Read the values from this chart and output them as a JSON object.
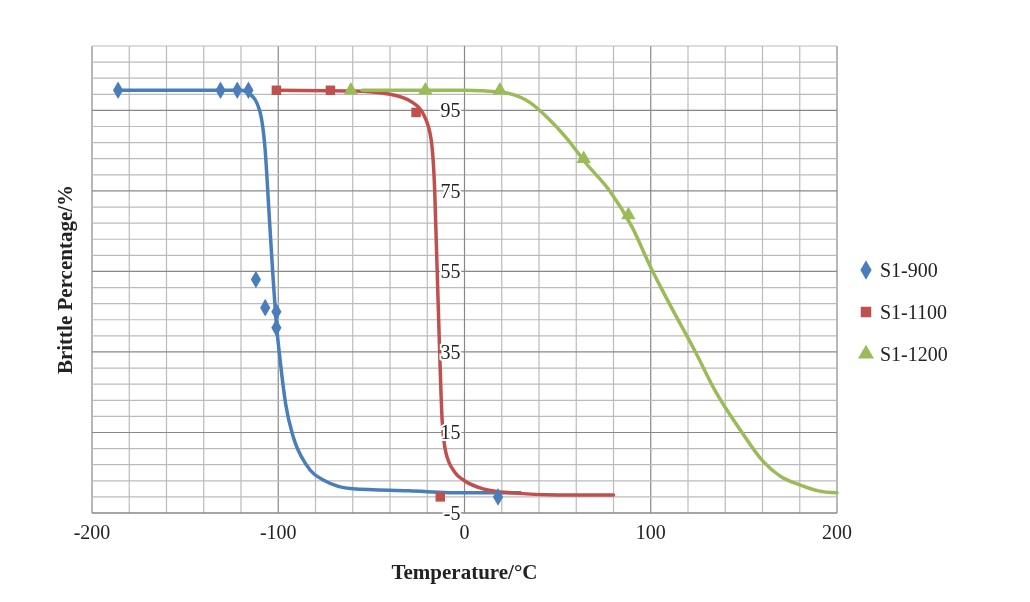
{
  "chart_data": {
    "type": "scatter",
    "xlabel": "Temperature/°C",
    "ylabel": "Brittle Percentage/%",
    "xlim": [
      -200,
      200
    ],
    "ylim": [
      -5,
      111
    ],
    "xticks": [
      -200,
      {
        "value": -180,
        "label": null
      },
      {
        "value": -160,
        "label": null
      },
      {
        "value": -140,
        "label": null
      },
      {
        "value": -120,
        "label": null
      },
      -100,
      {
        "value": -80,
        "label": null
      },
      {
        "value": -60,
        "label": null
      },
      {
        "value": -40,
        "label": null
      },
      {
        "value": -20,
        "label": null
      },
      0,
      {
        "value": 20,
        "label": null
      },
      {
        "value": 40,
        "label": null
      },
      {
        "value": 60,
        "label": null
      },
      {
        "value": 80,
        "label": null
      },
      100,
      {
        "value": 120,
        "label": null
      },
      {
        "value": 140,
        "label": null
      },
      {
        "value": 160,
        "label": null
      },
      {
        "value": 180,
        "label": null
      },
      200
    ],
    "yticks": [
      -5,
      {
        "value": -1,
        "label": null
      },
      {
        "value": 3,
        "label": null
      },
      {
        "value": 7,
        "label": null
      },
      {
        "value": 11,
        "label": null
      },
      15,
      {
        "value": 19,
        "label": null
      },
      {
        "value": 23,
        "label": null
      },
      {
        "value": 27,
        "label": null
      },
      {
        "value": 31,
        "label": null
      },
      35,
      {
        "value": 39,
        "label": null
      },
      {
        "value": 43,
        "label": null
      },
      {
        "value": 47,
        "label": null
      },
      {
        "value": 51,
        "label": null
      },
      55,
      {
        "value": 59,
        "label": null
      },
      {
        "value": 63,
        "label": null
      },
      {
        "value": 67,
        "label": null
      },
      {
        "value": 71,
        "label": null
      },
      75,
      {
        "value": 79,
        "label": null
      },
      {
        "value": 83,
        "label": null
      },
      {
        "value": 87,
        "label": null
      },
      {
        "value": 91,
        "label": null
      },
      95,
      {
        "value": 99,
        "label": null
      },
      {
        "value": 103,
        "label": null
      },
      {
        "value": 107,
        "label": null
      },
      {
        "value": 111,
        "label": null
      }
    ],
    "grid": true,
    "legend": "right",
    "series": [
      {
        "type": "line",
        "color": "#4a7ebb",
        "marker": "none",
        "line_style": "solid",
        "x": [
          -186,
          -120,
          -115,
          -110,
          -107,
          -105,
          -103,
          -101,
          -99,
          -96,
          -92,
          -85,
          -75,
          -60,
          -30,
          0,
          30
        ],
        "values": [
          100,
          100,
          99,
          95,
          85,
          70,
          55,
          42,
          33,
          22,
          14,
          7,
          3,
          1,
          0.5,
          0,
          0
        ]
      },
      {
        "type": "line",
        "color": "#c0504d",
        "marker": "none",
        "line_style": "solid",
        "x": [
          -101,
          -60,
          -40,
          -28,
          -22,
          -18,
          -16,
          -15,
          -14,
          -13,
          -12,
          -10,
          -5,
          0,
          10,
          25,
          50,
          80
        ],
        "values": [
          100,
          99.8,
          99,
          97,
          94,
          88,
          75,
          60,
          45,
          30,
          18,
          10,
          5,
          3,
          1,
          0,
          -0.5,
          -0.5
        ]
      },
      {
        "type": "line",
        "color": "#9bbb59",
        "marker": "none",
        "line_style": "solid",
        "x": [
          -55,
          0,
          20,
          35,
          45,
          55,
          65,
          78,
          90,
          100,
          110,
          124,
          135,
          149,
          160,
          170,
          180,
          190,
          200
        ],
        "values": [
          100,
          100,
          99.5,
          97,
          93,
          88,
          82,
          75,
          66,
          56,
          47,
          35,
          25,
          15,
          8,
          4,
          2,
          0.5,
          0
        ]
      },
      {
        "name": "S1-900",
        "color": "#4a7ebb",
        "marker": "diamond",
        "x": [
          -186,
          -131,
          -122,
          -116,
          -112,
          -107,
          -101,
          -101,
          18
        ],
        "values": [
          100,
          100,
          100,
          100,
          53,
          46,
          45,
          41,
          -1
        ]
      },
      {
        "name": "S1-1100",
        "color": "#c0504d",
        "marker": "square",
        "x": [
          -101,
          -72,
          -26,
          -13
        ],
        "values": [
          100,
          100,
          94.5,
          -1
        ]
      },
      {
        "name": "S1-1200",
        "color": "#9bbb59",
        "marker": "triangle",
        "x": [
          -61,
          -21,
          19,
          64,
          88
        ],
        "values": [
          100,
          100,
          100,
          83,
          69
        ]
      }
    ]
  }
}
